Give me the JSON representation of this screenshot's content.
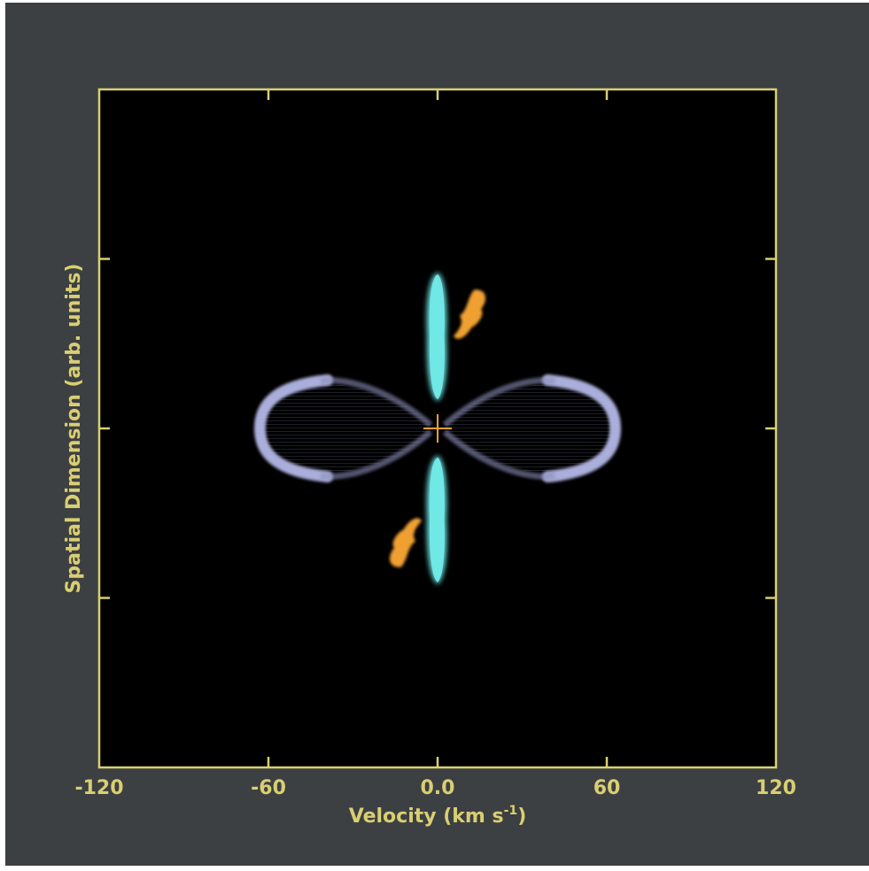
{
  "chart_data": {
    "type": "heatmap",
    "title": "",
    "xlabel": "Velocity (km s",
    "xlabel_sup": "-1",
    "xlabel_suffix": ")",
    "ylabel": "Spatial Dimension (arb. units)",
    "xlim": [
      -120,
      120
    ],
    "ylim": [
      -1,
      1
    ],
    "xticks": [
      -120,
      -60,
      0,
      60,
      120
    ],
    "xtick_labels": [
      "-120",
      "-60",
      "0.0",
      "60",
      "120"
    ],
    "yticks": [
      -0.5,
      0,
      0.5
    ],
    "grid": false,
    "colors": {
      "background": "#3d4042",
      "plot_area": "#000000",
      "frame": "#d9cf72",
      "ring": "#b4b8e6",
      "jet": "#6fe8e6",
      "knot": "#f0a030",
      "marker": "#f0a030"
    },
    "features": {
      "ring": {
        "center": [
          0,
          0
        ],
        "half_width_velocity": 63,
        "half_height_spatial": 0.15
      },
      "jet_upper": {
        "velocity": 0,
        "spatial_range": [
          0.08,
          0.46
        ]
      },
      "jet_lower": {
        "velocity": 0,
        "spatial_range": [
          -0.46,
          -0.08
        ]
      },
      "knot_upper": {
        "velocity": 12,
        "spatial_center": 0.32
      },
      "knot_lower": {
        "velocity": -12,
        "spatial_center": -0.32
      },
      "origin_marker": {
        "velocity": 0,
        "spatial": 0
      }
    }
  }
}
